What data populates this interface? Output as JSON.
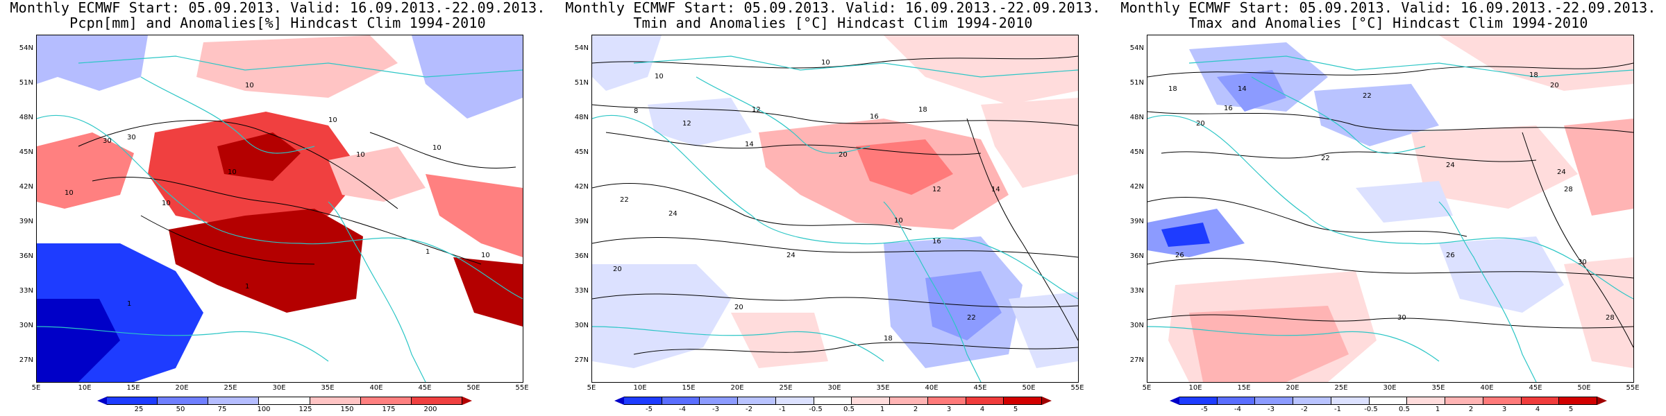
{
  "panels": [
    {
      "title_line1": "Monthly ECMWF Start: 05.09.2013. Valid: 16.09.2013.-22.09.2013.",
      "title_line2": "Pcpn[mm] and Anomalies[%] Hindcast Clim 1994-2010",
      "variable": "precipitation",
      "colorbar_ticks": [
        "25",
        "50",
        "75",
        "100",
        "125",
        "150",
        "175",
        "200"
      ],
      "colorbar_colors": [
        "#0000c8",
        "#1e3cff",
        "#6f7fff",
        "#b5bdff",
        "#ffffff",
        "#ffc4c4",
        "#ff8080",
        "#f04040",
        "#b40000"
      ],
      "contour_labels": [
        "10",
        "30",
        "30",
        "10",
        "10",
        "10",
        "10",
        "10",
        "10",
        "1",
        "10",
        "1",
        "1"
      ]
    },
    {
      "title_line1": "Monthly ECMWF Start: 05.09.2013. Valid: 16.09.2013.-22.09.2013.",
      "title_line2": "Tmin and Anomalies [°C] Hindcast Clim 1994-2010",
      "variable": "tmin",
      "colorbar_ticks": [
        "-5",
        "-4",
        "-3",
        "-2",
        "-1",
        "-0.5",
        "0.5",
        "1",
        "2",
        "3",
        "4",
        "5"
      ],
      "colorbar_colors": [
        "#0000c8",
        "#1e3cff",
        "#5a6eff",
        "#8c9bff",
        "#b9c3ff",
        "#dce1ff",
        "#ffffff",
        "#ffdcdc",
        "#ffb4b4",
        "#ff7a7a",
        "#f03c3c",
        "#d20000",
        "#a00000"
      ],
      "contour_labels": [
        "10",
        "10",
        "8",
        "12",
        "12",
        "14",
        "16",
        "18",
        "20",
        "22",
        "24",
        "24",
        "20",
        "20",
        "22",
        "18",
        "16",
        "12",
        "10",
        "14"
      ]
    },
    {
      "title_line1": "Monthly ECMWF Start: 05.09.2013. Valid: 16.09.2013.-22.09.2013.",
      "title_line2": "Tmax and Anomalies [°C] Hindcast Clim 1994-2010",
      "variable": "tmax",
      "colorbar_ticks": [
        "-5",
        "-4",
        "-3",
        "-2",
        "-1",
        "-0.5",
        "0.5",
        "1",
        "2",
        "3",
        "4",
        "5"
      ],
      "colorbar_colors": [
        "#0000c8",
        "#1e3cff",
        "#5a6eff",
        "#8c9bff",
        "#b9c3ff",
        "#dce1ff",
        "#ffffff",
        "#ffdcdc",
        "#ffb4b4",
        "#ff7a7a",
        "#f03c3c",
        "#d20000",
        "#a00000"
      ],
      "contour_labels": [
        "18",
        "16",
        "20",
        "22",
        "24",
        "26",
        "28",
        "30",
        "22",
        "14",
        "18",
        "20",
        "24",
        "26",
        "30",
        "28"
      ]
    }
  ],
  "lat_labels": [
    "54N",
    "51N",
    "48N",
    "45N",
    "42N",
    "39N",
    "36N",
    "33N",
    "30N",
    "27N"
  ],
  "lon_labels": [
    "5E",
    "10E",
    "15E",
    "20E",
    "25E",
    "30E",
    "35E",
    "40E",
    "45E",
    "50E",
    "55E"
  ],
  "map_extent": {
    "lon_min": 5,
    "lon_max": 55,
    "lat_min": 25,
    "lat_max": 55
  },
  "coast_color": "#2cc6c6",
  "contour_color": "#000000"
}
